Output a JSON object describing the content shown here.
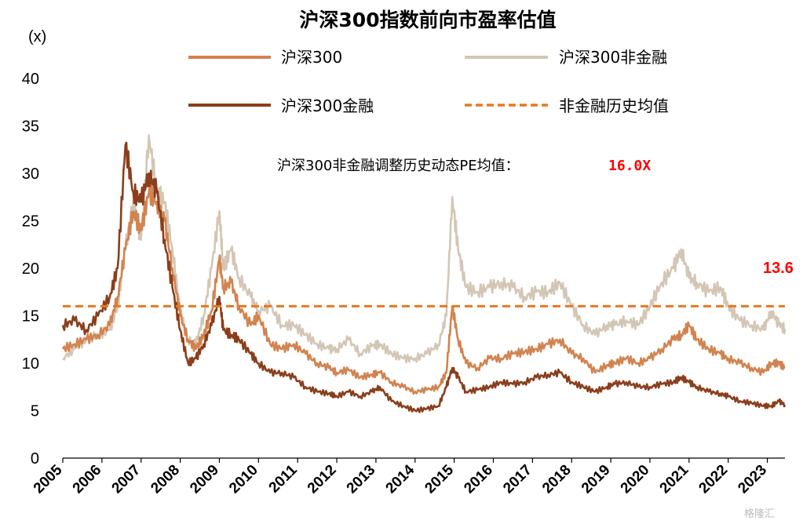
{
  "chart_data": {
    "type": "line",
    "title": "沪深300指数前向市盈率估值",
    "ylabel": "(x)",
    "ylim": [
      0,
      40
    ],
    "yticks": [
      0,
      5,
      10,
      15,
      20,
      25,
      30,
      35,
      40
    ],
    "xlim": [
      2005.0,
      2023.45
    ],
    "xticks": [
      "2005",
      "2006",
      "2007",
      "2008",
      "2009",
      "2010",
      "2011",
      "2012",
      "2013",
      "2014",
      "2015",
      "2016",
      "2017",
      "2018",
      "2019",
      "2020",
      "2021",
      "2022",
      "2023"
    ],
    "legend_placement": "top",
    "grid": false,
    "annotation": {
      "label": "沪深300非金融调整历史动态PE均值：",
      "value": "16.0X"
    },
    "end_label": "13.6",
    "reference_line": {
      "name": "非金融历史均值",
      "value": 16.0,
      "color": "#E87722"
    },
    "series": [
      {
        "name": "沪深300",
        "color": "#D2834F",
        "x": [
          2005.0,
          2005.3,
          2005.6,
          2005.9,
          2006.2,
          2006.4,
          2006.6,
          2006.8,
          2007.0,
          2007.2,
          2007.4,
          2007.6,
          2007.8,
          2008.0,
          2008.2,
          2008.4,
          2008.6,
          2008.8,
          2009.0,
          2009.1,
          2009.3,
          2009.5,
          2009.8,
          2010.0,
          2010.3,
          2010.6,
          2010.9,
          2011.2,
          2011.5,
          2011.8,
          2012.0,
          2012.3,
          2012.6,
          2012.9,
          2013.1,
          2013.4,
          2013.7,
          2014.0,
          2014.3,
          2014.6,
          2014.8,
          2014.95,
          2015.1,
          2015.3,
          2015.6,
          2015.9,
          2016.2,
          2016.5,
          2016.8,
          2017.1,
          2017.4,
          2017.7,
          2018.0,
          2018.3,
          2018.6,
          2018.9,
          2019.1,
          2019.4,
          2019.7,
          2020.0,
          2020.3,
          2020.6,
          2020.8,
          2021.0,
          2021.2,
          2021.5,
          2021.8,
          2022.0,
          2022.3,
          2022.6,
          2022.9,
          2023.1,
          2023.3,
          2023.45
        ],
        "values": [
          11.5,
          12.0,
          12.5,
          13.0,
          14.0,
          17.0,
          22.0,
          26.0,
          24.0,
          28.0,
          27.0,
          25.0,
          20.0,
          15.0,
          12.5,
          11.5,
          13.0,
          15.5,
          21.0,
          18.0,
          18.5,
          16.0,
          14.0,
          15.0,
          12.0,
          11.5,
          12.0,
          11.0,
          10.0,
          9.5,
          9.0,
          9.3,
          8.5,
          8.8,
          9.0,
          8.0,
          7.5,
          7.0,
          7.2,
          7.5,
          9.0,
          16.0,
          12.5,
          10.0,
          9.5,
          10.5,
          10.5,
          11.0,
          11.2,
          11.5,
          12.0,
          12.5,
          11.0,
          10.5,
          9.0,
          9.8,
          10.0,
          10.5,
          10.0,
          10.5,
          11.5,
          12.5,
          13.0,
          14.0,
          12.5,
          11.5,
          11.0,
          10.5,
          10.0,
          9.5,
          9.0,
          10.0,
          10.0,
          9.5
        ]
      },
      {
        "name": "沪深300非金融",
        "color": "#D3C6B5",
        "x": [
          2005.0,
          2005.3,
          2005.6,
          2005.9,
          2006.2,
          2006.4,
          2006.6,
          2006.8,
          2007.0,
          2007.2,
          2007.4,
          2007.6,
          2007.8,
          2008.0,
          2008.2,
          2008.4,
          2008.6,
          2008.8,
          2009.0,
          2009.1,
          2009.3,
          2009.5,
          2009.8,
          2010.0,
          2010.3,
          2010.6,
          2010.9,
          2011.2,
          2011.5,
          2011.8,
          2012.0,
          2012.3,
          2012.6,
          2012.9,
          2013.1,
          2013.4,
          2013.7,
          2014.0,
          2014.3,
          2014.6,
          2014.8,
          2014.95,
          2015.1,
          2015.3,
          2015.6,
          2015.9,
          2016.2,
          2016.5,
          2016.8,
          2017.1,
          2017.4,
          2017.7,
          2018.0,
          2018.3,
          2018.6,
          2018.9,
          2019.1,
          2019.4,
          2019.7,
          2020.0,
          2020.3,
          2020.6,
          2020.8,
          2021.0,
          2021.2,
          2021.5,
          2021.8,
          2022.0,
          2022.3,
          2022.6,
          2022.9,
          2023.1,
          2023.3,
          2023.45
        ],
        "values": [
          10.5,
          11.5,
          12.5,
          13.0,
          13.5,
          16.0,
          22.0,
          27.0,
          23.0,
          34.0,
          28.0,
          27.0,
          22.0,
          15.5,
          12.5,
          12.0,
          15.0,
          20.0,
          26.0,
          20.0,
          22.0,
          19.0,
          17.0,
          15.5,
          16.0,
          14.0,
          14.0,
          13.0,
          12.0,
          11.5,
          11.5,
          12.5,
          11.0,
          11.8,
          12.0,
          11.0,
          10.5,
          10.5,
          11.0,
          12.0,
          15.0,
          27.5,
          22.0,
          18.0,
          17.5,
          18.0,
          18.5,
          18.0,
          17.0,
          17.5,
          17.5,
          18.5,
          16.0,
          14.0,
          13.0,
          14.0,
          14.0,
          14.5,
          14.0,
          16.0,
          18.5,
          20.0,
          22.0,
          19.0,
          18.5,
          17.5,
          18.0,
          16.0,
          14.5,
          14.0,
          13.5,
          15.5,
          14.0,
          13.6
        ]
      },
      {
        "name": "沪深300金融",
        "color": "#8B3E1B",
        "x": [
          2005.0,
          2005.3,
          2005.6,
          2005.9,
          2006.2,
          2006.4,
          2006.6,
          2006.8,
          2007.0,
          2007.2,
          2007.4,
          2007.6,
          2007.8,
          2008.0,
          2008.2,
          2008.4,
          2008.6,
          2008.8,
          2009.0,
          2009.1,
          2009.3,
          2009.5,
          2009.8,
          2010.0,
          2010.3,
          2010.6,
          2010.9,
          2011.2,
          2011.5,
          2011.8,
          2012.0,
          2012.3,
          2012.6,
          2012.9,
          2013.1,
          2013.4,
          2013.7,
          2014.0,
          2014.3,
          2014.6,
          2014.8,
          2014.95,
          2015.1,
          2015.3,
          2015.6,
          2015.9,
          2016.2,
          2016.5,
          2016.8,
          2017.1,
          2017.4,
          2017.7,
          2018.0,
          2018.3,
          2018.6,
          2018.9,
          2019.1,
          2019.4,
          2019.7,
          2020.0,
          2020.3,
          2020.6,
          2020.8,
          2021.0,
          2021.2,
          2021.5,
          2021.8,
          2022.0,
          2022.3,
          2022.6,
          2022.9,
          2023.1,
          2023.3,
          2023.45
        ],
        "values": [
          14.0,
          14.5,
          13.5,
          15.0,
          17.0,
          20.0,
          33.0,
          28.0,
          27.0,
          30.0,
          28.0,
          23.0,
          18.0,
          13.5,
          10.0,
          10.5,
          12.0,
          14.0,
          17.0,
          13.5,
          13.0,
          12.5,
          11.0,
          10.0,
          9.0,
          9.0,
          8.5,
          7.5,
          7.0,
          6.8,
          6.5,
          7.0,
          6.5,
          7.0,
          7.5,
          6.0,
          5.5,
          5.0,
          5.2,
          5.5,
          7.5,
          9.5,
          8.5,
          7.0,
          7.2,
          7.5,
          8.0,
          7.8,
          8.0,
          8.5,
          8.8,
          9.0,
          8.0,
          7.5,
          7.0,
          7.5,
          7.8,
          8.0,
          7.5,
          7.5,
          7.8,
          8.0,
          8.5,
          8.0,
          7.5,
          7.0,
          6.8,
          6.5,
          6.0,
          5.8,
          5.5,
          5.5,
          6.0,
          5.6
        ]
      }
    ]
  },
  "legend": {
    "hs300": "沪深300",
    "hs300_nonfin": "沪深300非金融",
    "hs300_fin": "沪深300金融",
    "nonfin_mean": "非金融历史均值"
  },
  "watermark": "格隆汇"
}
